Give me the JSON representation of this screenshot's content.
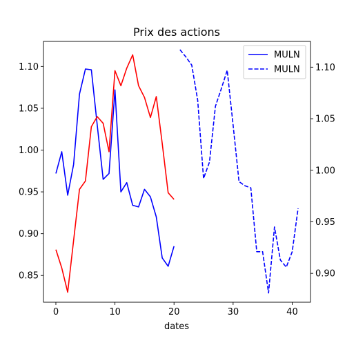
{
  "chart_data": {
    "type": "line",
    "title": "Prix des actions",
    "xlabel": "dates",
    "ylabel": "",
    "x_ticks": [
      0,
      10,
      20,
      30,
      40
    ],
    "left_axis": {
      "ylim": [
        0.818,
        1.13
      ],
      "ticks": [
        0.85,
        0.9,
        0.95,
        1.0,
        1.05,
        1.1
      ],
      "tick_labels": [
        "0.85",
        "0.90",
        "0.95",
        "1.00",
        "1.05",
        "1.10"
      ]
    },
    "right_axis": {
      "ylim": [
        0.872,
        1.125
      ],
      "ticks": [
        0.9,
        0.95,
        1.0,
        1.05,
        1.1
      ],
      "tick_labels": [
        "0.90",
        "0.95",
        "1.00",
        "1.05",
        "1.10"
      ]
    },
    "xlim": [
      -2.1,
      43.1
    ],
    "legend_position": "top-right",
    "legend": [
      {
        "label": "MULN",
        "style": "solid",
        "color": "#0000ff"
      },
      {
        "label": "MULN",
        "style": "dashed",
        "color": "#0000ff"
      }
    ],
    "series": [
      {
        "name": "MULN",
        "axis": "left",
        "style": "solid",
        "color": "#0000ff",
        "x": [
          0,
          1,
          2,
          3,
          4,
          5,
          6,
          7,
          8,
          9,
          10,
          11,
          12,
          13,
          14,
          15,
          16,
          17,
          18,
          19,
          20
        ],
        "y": [
          0.972,
          0.998,
          0.946,
          0.983,
          1.067,
          1.097,
          1.096,
          1.03,
          0.965,
          0.972,
          1.072,
          0.95,
          0.961,
          0.934,
          0.932,
          0.953,
          0.944,
          0.92,
          0.871,
          0.861,
          0.885
        ]
      },
      {
        "name": "",
        "axis": "left",
        "style": "solid",
        "color": "#ff0000",
        "x": [
          0,
          1,
          2,
          3,
          4,
          5,
          6,
          7,
          8,
          9,
          10,
          11,
          12,
          13,
          14,
          15,
          16,
          17,
          18,
          19,
          20
        ],
        "y": [
          0.881,
          0.859,
          0.83,
          0.892,
          0.953,
          0.963,
          1.028,
          1.04,
          1.032,
          0.998,
          1.095,
          1.077,
          1.098,
          1.114,
          1.077,
          1.063,
          1.039,
          1.064,
          1.008,
          0.949,
          0.941
        ]
      },
      {
        "name": "MULN",
        "axis": "right",
        "style": "dashed",
        "color": "#0000ff",
        "x": [
          21,
          22,
          23,
          24,
          25,
          26,
          27,
          28,
          29,
          30,
          31,
          32,
          33,
          34,
          35,
          36,
          37,
          38,
          39,
          40,
          41
        ],
        "y": [
          1.117,
          1.11,
          1.102,
          1.068,
          0.992,
          1.008,
          1.062,
          1.079,
          1.097,
          1.044,
          0.989,
          0.985,
          0.983,
          0.921,
          0.921,
          0.881,
          0.945,
          0.913,
          0.906,
          0.921,
          0.963
        ]
      }
    ]
  }
}
